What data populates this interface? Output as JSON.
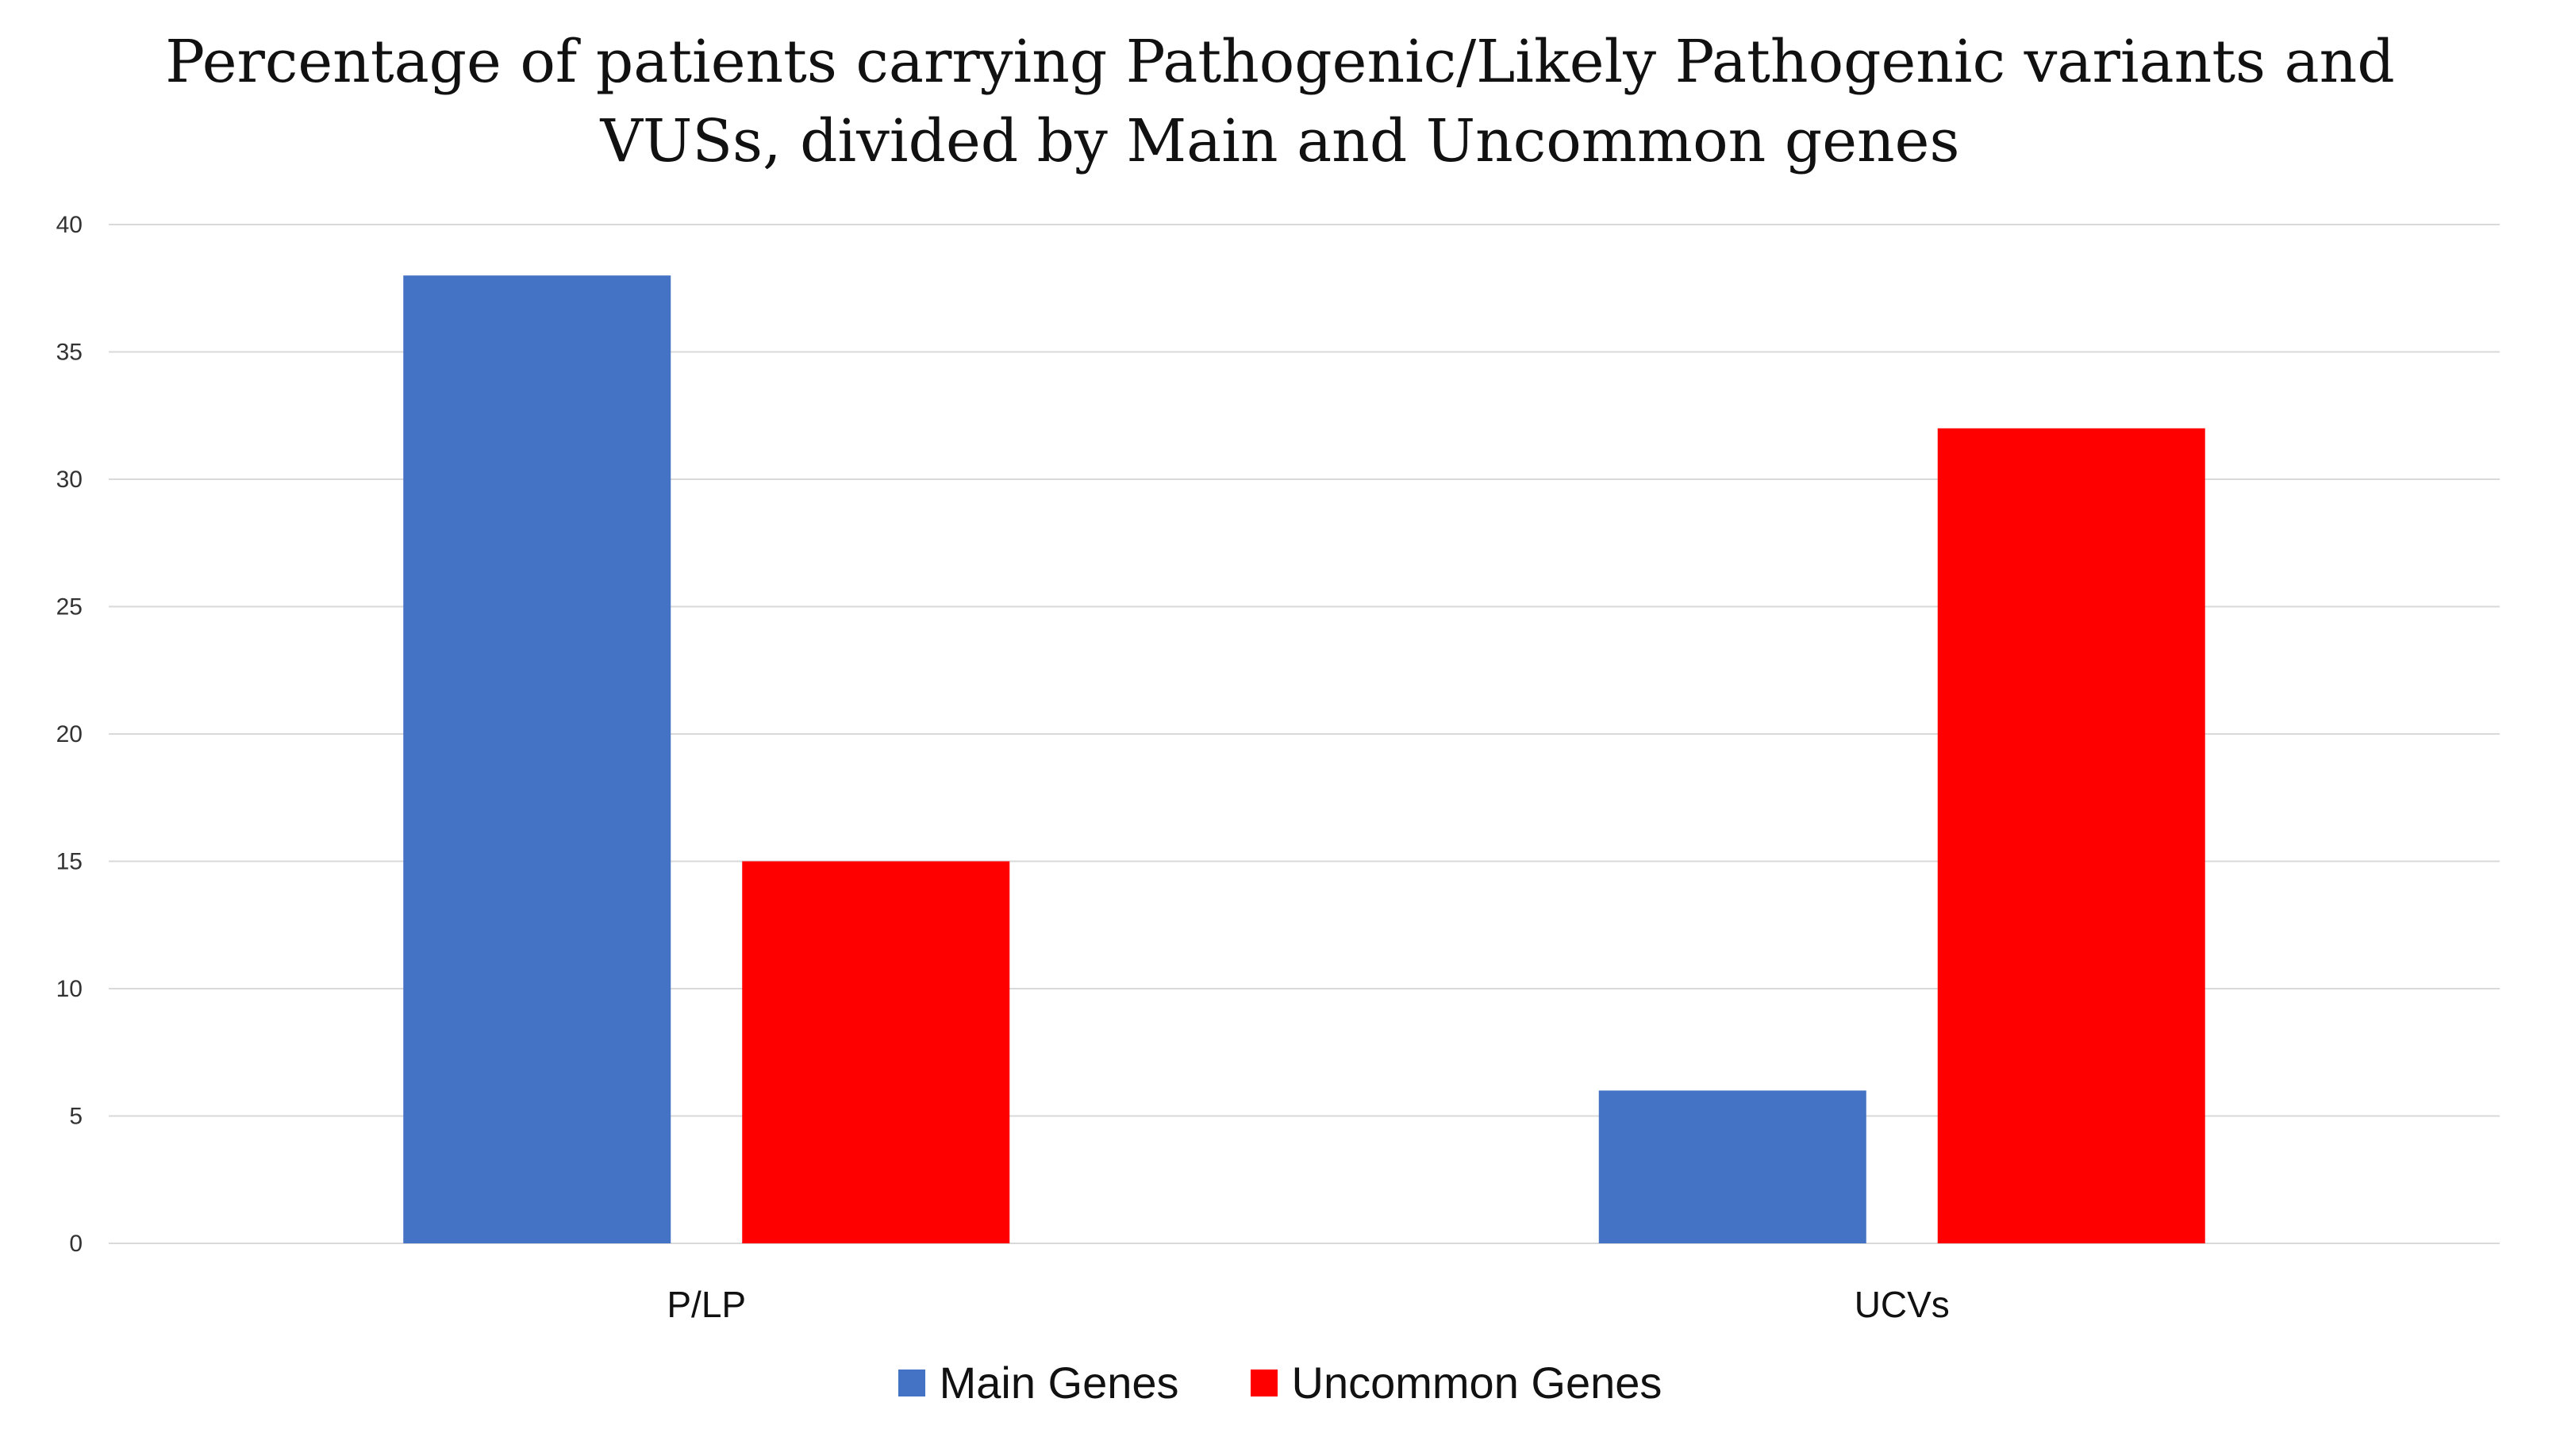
{
  "chart_data": {
    "type": "bar",
    "title": "Percentage of patients carrying Pathogenic/Likely Pathogenic variants and VUSs, divided by Main and Uncommon genes",
    "title_lines": [
      "Percentage of patients carrying Pathogenic/Likely Pathogenic variants and",
      "VUSs, divided by Main and Uncommon genes"
    ],
    "categories": [
      "P/LP",
      "UCVs"
    ],
    "series": [
      {
        "name": "Main Genes",
        "values": [
          38,
          6
        ],
        "color": "#4472c4"
      },
      {
        "name": "Uncommon Genes",
        "values": [
          15,
          32
        ],
        "color": "#ff0000"
      }
    ],
    "xlabel": "",
    "ylabel": "",
    "ylim": [
      0,
      40
    ],
    "yticks": [
      0,
      5,
      10,
      15,
      20,
      25,
      30,
      35,
      40
    ],
    "grid": true,
    "legend_position": "bottom-center"
  }
}
